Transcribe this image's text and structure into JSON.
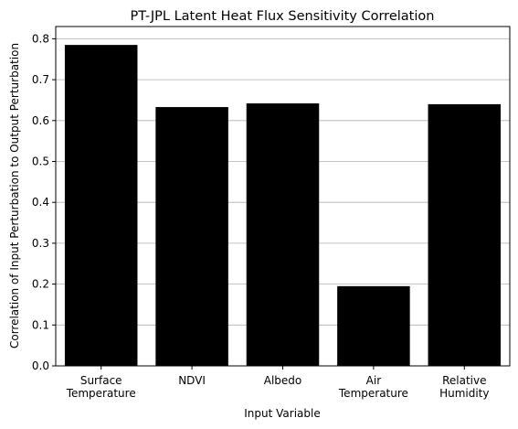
{
  "chart_data": {
    "type": "bar",
    "title": "PT-JPL Latent Heat Flux Sensitivity Correlation",
    "xlabel": "Input Variable",
    "ylabel": "Correlation of Input Perturbation to Output Perturbation",
    "categories": [
      [
        "Surface",
        "Temperature"
      ],
      [
        "NDVI"
      ],
      [
        "Albedo"
      ],
      [
        "Air",
        "Temperature"
      ],
      [
        "Relative",
        "Humidity"
      ]
    ],
    "values": [
      0.785,
      0.633,
      0.642,
      0.195,
      0.64
    ],
    "ylim": [
      0,
      0.83
    ],
    "yticks": [
      "0.0",
      "0.1",
      "0.2",
      "0.3",
      "0.4",
      "0.5",
      "0.6",
      "0.7",
      "0.8"
    ],
    "grid": "y",
    "bar_color": "#000000"
  }
}
